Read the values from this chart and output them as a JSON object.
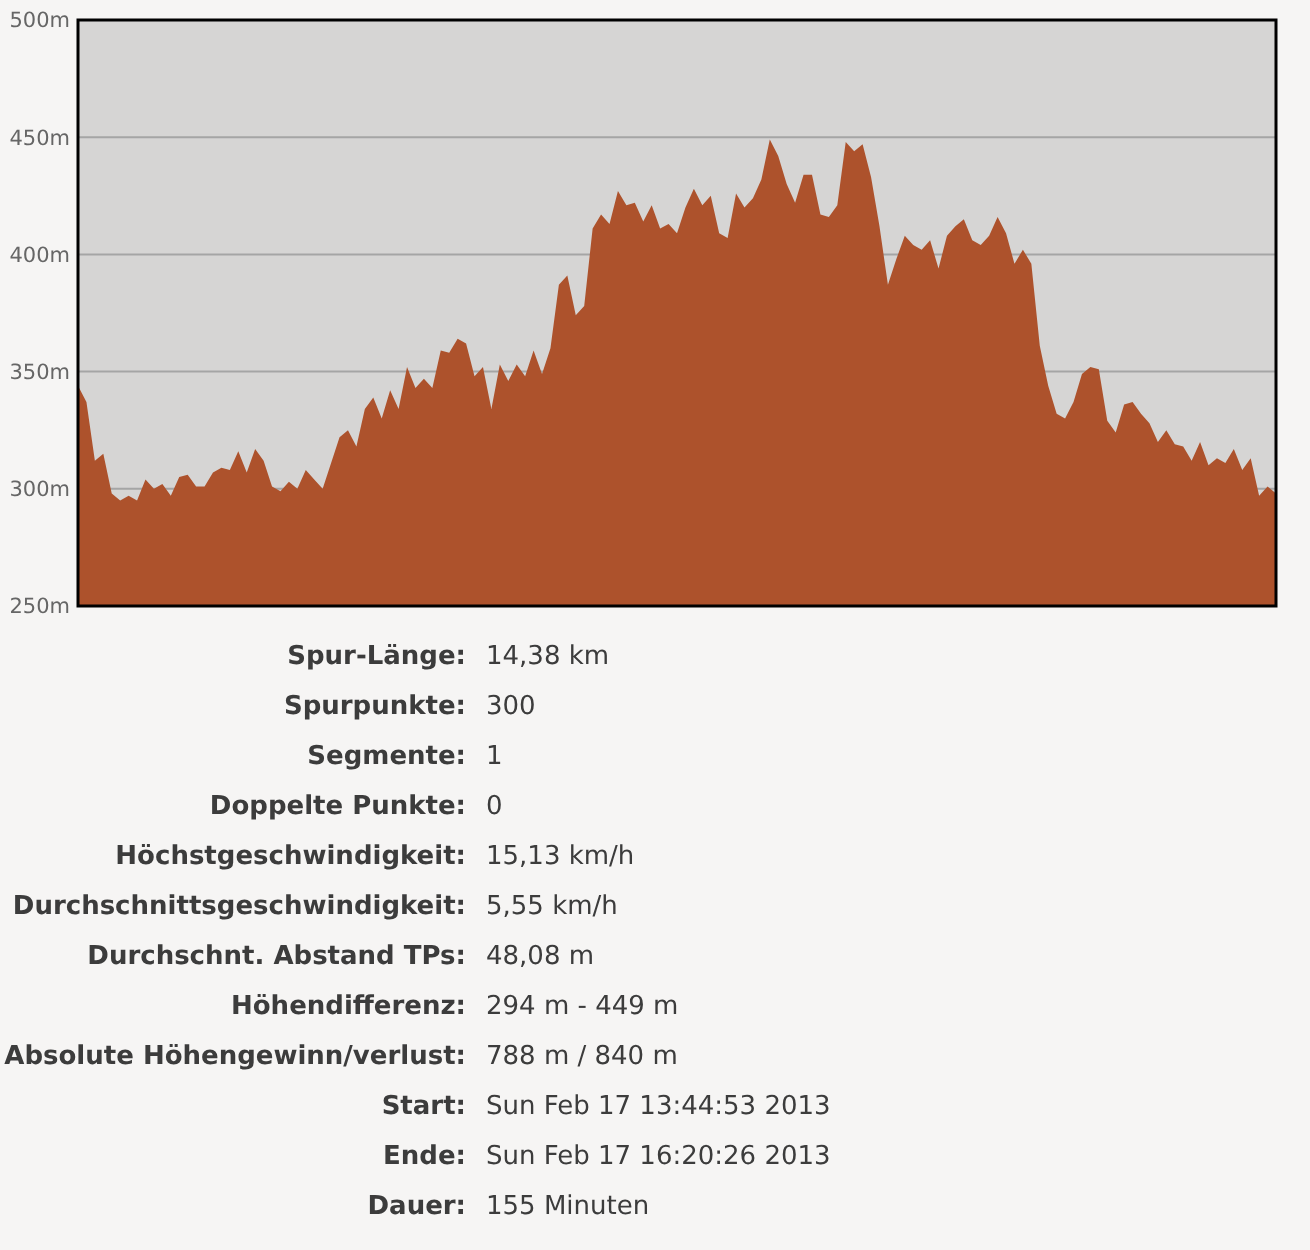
{
  "chart_data": {
    "type": "area",
    "categories": [
      null,
      null,
      null,
      null,
      null,
      null,
      null,
      null,
      null,
      null,
      null,
      null,
      null,
      null,
      null,
      null,
      null,
      null,
      null,
      null,
      null,
      null,
      null,
      null,
      null,
      null,
      null,
      null,
      null,
      null,
      null,
      null,
      null,
      null,
      null,
      null,
      null,
      null,
      null,
      null,
      null,
      null,
      null,
      null,
      null,
      null,
      null,
      null,
      null,
      null,
      null,
      null,
      null,
      null,
      null,
      null,
      null,
      null,
      null,
      null,
      null,
      null,
      null,
      null,
      null,
      null,
      null,
      null,
      null,
      null,
      null,
      null,
      null,
      null,
      null,
      null,
      null,
      null,
      null,
      null,
      null,
      null,
      null,
      null,
      null,
      null,
      null,
      null,
      null,
      null,
      null,
      null,
      null,
      null,
      null,
      null,
      null,
      null,
      null,
      null,
      null,
      null,
      null,
      null,
      null,
      null,
      null,
      null,
      null,
      null,
      null,
      null,
      null,
      null,
      null,
      null,
      null,
      null,
      null,
      null,
      null,
      null,
      null,
      null,
      null,
      null,
      null,
      null,
      null,
      null,
      null,
      null,
      null,
      null,
      null,
      null,
      null,
      null,
      null,
      null,
      null,
      null,
      null
    ],
    "series": [
      {
        "color": "#ad522c",
        "values": [
          344,
          337,
          312,
          315,
          298,
          295,
          297,
          295,
          304,
          300,
          302,
          297,
          305,
          306,
          301,
          301,
          307,
          309,
          308,
          316,
          307,
          317,
          312,
          301,
          299,
          303,
          300,
          308,
          304,
          300,
          311,
          322,
          325,
          318,
          334,
          339,
          330,
          342,
          334,
          352,
          343,
          347,
          343,
          359,
          358,
          364,
          362,
          348,
          352,
          334,
          353,
          346,
          353,
          348,
          359,
          349,
          360,
          387,
          391,
          374,
          378,
          411,
          417,
          413,
          427,
          421,
          422,
          414,
          421,
          411,
          413,
          409,
          420,
          428,
          421,
          425,
          409,
          407,
          426,
          420,
          424,
          432,
          449,
          442,
          430,
          422,
          434,
          434,
          417,
          416,
          421,
          448,
          444,
          447,
          433,
          412,
          387,
          398,
          408,
          404,
          402,
          406,
          394,
          408,
          412,
          415,
          406,
          404,
          408,
          416,
          409,
          396,
          402,
          396,
          361,
          344,
          332,
          330,
          337,
          349,
          352,
          351,
          329,
          324,
          336,
          337,
          332,
          328,
          320,
          325,
          319,
          318,
          312,
          320,
          310,
          313,
          311,
          317,
          308,
          313,
          297,
          301,
          298
        ]
      }
    ],
    "ylim": [
      250,
      500
    ],
    "yticks": [
      {
        "value": 250,
        "label": "250m"
      },
      {
        "value": 300,
        "label": "300m"
      },
      {
        "value": 350,
        "label": "350m"
      },
      {
        "value": 400,
        "label": "400m"
      },
      {
        "value": 450,
        "label": "450m"
      },
      {
        "value": 500,
        "label": "500m"
      }
    ],
    "grid": "y",
    "tick_labels": "y",
    "annotations": [
      "Spur-Länge: 14,38 km",
      "Spurpunkte: 300",
      "Segmente: 1",
      "Doppelte Punkte: 0",
      "Höchstgeschwindigkeit: 15,13 km/h",
      "Durchschnittsgeschwindigkeit: 5,55 km/h",
      "Durchschnt. Abstand TPs: 48,08 m",
      "Höhendifferenz: 294 m - 449 m",
      "Absolute Höhengewinn/verlust: 788 m / 840 m",
      "Start: Sun Feb 17 13:44:53 2013",
      "Ende: Sun Feb 17 16:20:26 2013",
      "Dauer: 155 Minuten"
    ]
  }
}
